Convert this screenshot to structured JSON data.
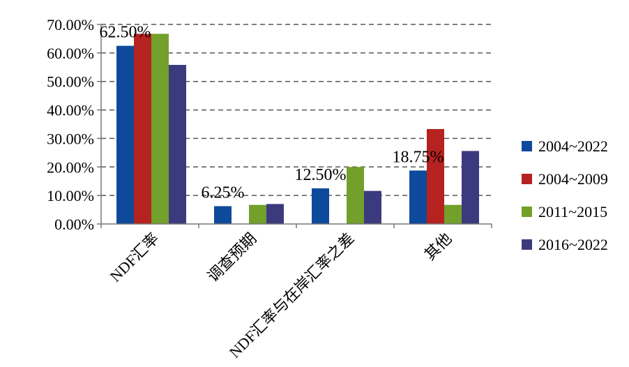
{
  "chart_data": {
    "type": "bar",
    "categories": [
      "NDF汇率",
      "调查预期",
      "NDF汇率与在岸汇率之差",
      "其他"
    ],
    "series": [
      {
        "name": "2004~2022",
        "color": "#0e4a9c",
        "values": [
          62.5,
          6.25,
          12.5,
          18.75
        ]
      },
      {
        "name": "2004~2009",
        "color": "#b5221f",
        "values": [
          66.7,
          0,
          0,
          33.3
        ]
      },
      {
        "name": "2011~2015",
        "color": "#72a02a",
        "values": [
          66.7,
          6.7,
          20.0,
          6.7
        ]
      },
      {
        "name": "2016~2022",
        "color": "#3c3a7e",
        "values": [
          55.8,
          7.0,
          11.6,
          25.6
        ]
      }
    ],
    "data_labels": [
      "62.50%",
      "6.25%",
      "12.50%",
      "18.75%"
    ],
    "yticks": [
      "0.00%",
      "10.00%",
      "20.00%",
      "30.00%",
      "40.00%",
      "50.00%",
      "60.00%",
      "70.00%"
    ],
    "ylim": [
      0,
      70
    ],
    "grid": true,
    "legend_position": "right",
    "title": "",
    "xlabel": "",
    "ylabel": ""
  }
}
